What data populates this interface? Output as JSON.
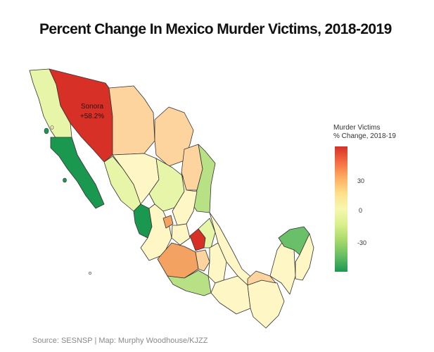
{
  "title": "Percent Change In Mexico Murder Victims, 2018-2019",
  "callout": {
    "state": "Sonora",
    "value": "+58.2%"
  },
  "legend": {
    "title_line1": "Murder Victims",
    "title_line2": "% Change, 2018-19",
    "ticks": [
      "30",
      "0",
      "-30"
    ],
    "gradient": [
      "#d73027",
      "#f46d43",
      "#fdae61",
      "#fee08b",
      "#f7f7b0",
      "#d9ef8b",
      "#a6d96a",
      "#66bd63",
      "#1a9850"
    ]
  },
  "source": "Source: SESNSP | Map: Murphy Woodhouse/KJZZ",
  "colors": {
    "red": "#d73027",
    "orange": "#f4a261",
    "light_orange": "#fdd49e",
    "pale_yellow": "#fef6c4",
    "yellow_green": "#e6f5a8",
    "light_green": "#b8e186",
    "green": "#6abf69",
    "dark_green": "#1a9850",
    "border": "#333333"
  },
  "states": [
    {
      "name": "baja-california",
      "fill": "yellow_green"
    },
    {
      "name": "baja-california-sur",
      "fill": "dark_green"
    },
    {
      "name": "sonora",
      "fill": "red"
    },
    {
      "name": "chihuahua",
      "fill": "light_orange"
    },
    {
      "name": "coahuila",
      "fill": "light_orange"
    },
    {
      "name": "nuevo-leon",
      "fill": "light_orange"
    },
    {
      "name": "tamaulipas",
      "fill": "light_green"
    },
    {
      "name": "sinaloa",
      "fill": "yellow_green"
    },
    {
      "name": "durango",
      "fill": "pale_yellow"
    },
    {
      "name": "zacatecas",
      "fill": "yellow_green"
    },
    {
      "name": "san-luis-potosi",
      "fill": "pale_yellow"
    },
    {
      "name": "nayarit",
      "fill": "dark_green"
    },
    {
      "name": "jalisco",
      "fill": "pale_yellow"
    },
    {
      "name": "aguascalientes",
      "fill": "orange"
    },
    {
      "name": "guanajuato",
      "fill": "pale_yellow"
    },
    {
      "name": "queretaro",
      "fill": "red"
    },
    {
      "name": "hidalgo",
      "fill": "yellow_green"
    },
    {
      "name": "michoacan",
      "fill": "orange"
    },
    {
      "name": "mexico",
      "fill": "light_orange"
    },
    {
      "name": "guerrero",
      "fill": "light_green"
    },
    {
      "name": "puebla",
      "fill": "pale_yellow"
    },
    {
      "name": "veracruz",
      "fill": "pale_yellow"
    },
    {
      "name": "oaxaca",
      "fill": "pale_yellow"
    },
    {
      "name": "chiapas",
      "fill": "pale_yellow"
    },
    {
      "name": "tabasco",
      "fill": "light_orange"
    },
    {
      "name": "campeche",
      "fill": "pale_yellow"
    },
    {
      "name": "yucatan",
      "fill": "green"
    },
    {
      "name": "quintana-roo",
      "fill": "pale_yellow"
    }
  ]
}
